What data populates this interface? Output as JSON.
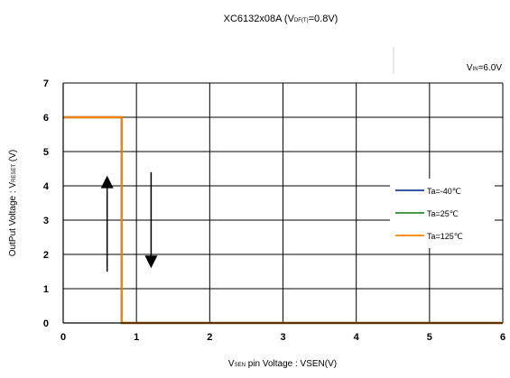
{
  "chart_data": {
    "type": "line",
    "title_parts": {
      "main": "XC6132x08A  (V",
      "sub": "DF(T)",
      "tail": "=0.8V)"
    },
    "condition_parts": {
      "main": "V",
      "sub": "IN",
      "tail": "=6.0V"
    },
    "xlabel_parts": {
      "sub": "SEN",
      "main": " pin Voltage : VSEN(V)"
    },
    "ylabel_parts": {
      "main": "OutPut Voltage : V",
      "sub": "RESET",
      "tail": " (V)"
    },
    "xlim": [
      0,
      6
    ],
    "ylim": [
      0,
      7
    ],
    "xticks": [
      "0",
      "1",
      "2",
      "3",
      "4",
      "5",
      "6"
    ],
    "yticks": [
      "0",
      "1",
      "2",
      "3",
      "4",
      "5",
      "6",
      "7"
    ],
    "grid": true,
    "legend_position": "right",
    "series": [
      {
        "name": "Ta=-40℃",
        "color": "#1f3b9a",
        "x": [
          0,
          0.8,
          0.8,
          6
        ],
        "y": [
          6,
          6,
          0,
          0
        ]
      },
      {
        "name": "Ta=25℃",
        "color": "#2e8b2e",
        "x": [
          0,
          0.8,
          0.8,
          6
        ],
        "y": [
          6,
          6,
          0,
          0
        ]
      },
      {
        "name": "Ta=125℃",
        "color": "#ff7f00",
        "x": [
          0,
          0.8,
          0.8,
          6
        ],
        "y": [
          6,
          6,
          0,
          0
        ]
      }
    ],
    "annotations": [
      {
        "kind": "arrow",
        "direction": "up",
        "x": 0.6,
        "y_from": 1.5,
        "y_to": 4.3
      },
      {
        "kind": "arrow",
        "direction": "down",
        "x": 1.2,
        "y_from": 4.4,
        "y_to": 1.6
      }
    ]
  }
}
